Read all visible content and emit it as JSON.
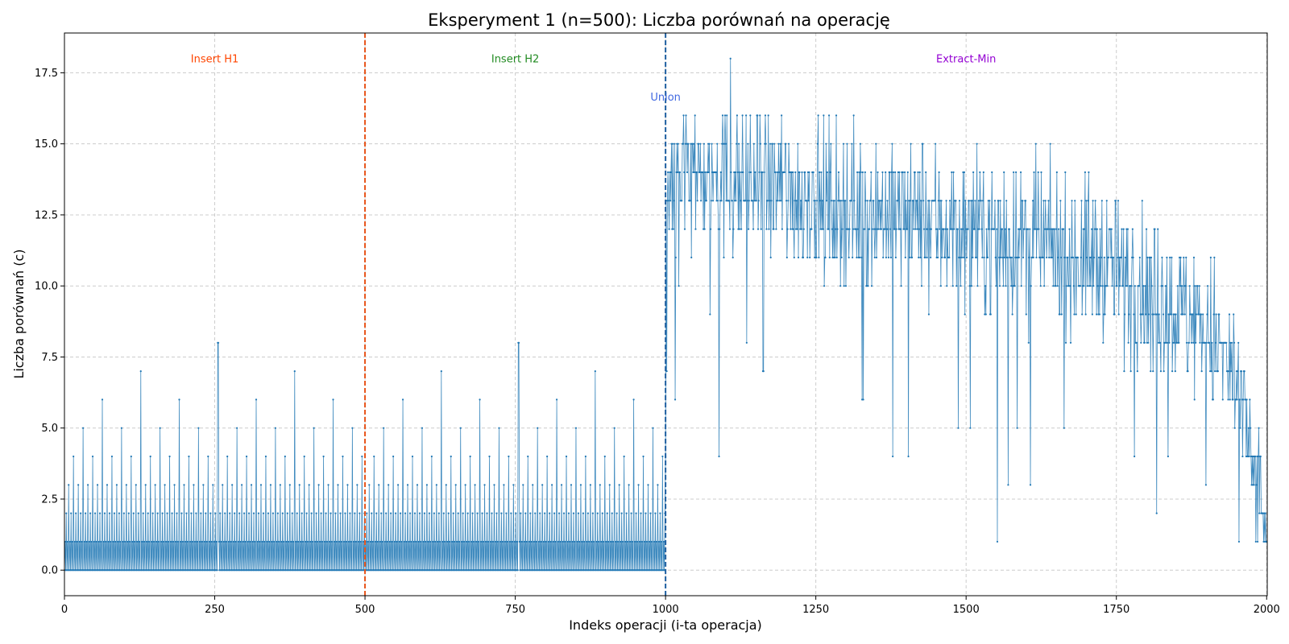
{
  "chart_data": {
    "type": "line",
    "title": "Eksperyment 1 (n=500): Liczba porównań na operację",
    "xlabel": "Indeks operacji (i-ta operacja)",
    "ylabel": "Liczba porównań (c)",
    "xlim": [
      0,
      2001
    ],
    "ylim": [
      -0.9,
      18.9
    ],
    "xticks": [
      0,
      250,
      500,
      750,
      1000,
      1250,
      1500,
      1750,
      2000
    ],
    "xtick_labels": [
      "0",
      "250",
      "500",
      "750",
      "1000",
      "1250",
      "1500",
      "1750",
      "2000"
    ],
    "yticks": [
      0,
      2.5,
      5,
      7.5,
      10,
      12.5,
      15,
      17.5
    ],
    "ytick_labels": [
      "0.0",
      "2.5",
      "5.0",
      "7.5",
      "10.0",
      "12.5",
      "15.0",
      "17.5"
    ],
    "grid": true,
    "series_color": "#1f77b4",
    "vertical_lines": [
      {
        "x": 500,
        "color": "#e8541a",
        "style": "dashed"
      },
      {
        "x": 1000,
        "color": "#1f5fa0",
        "style": "dashed"
      }
    ],
    "annotations": [
      {
        "text": "Insert H1",
        "x": 250,
        "y": 18.0,
        "color": "#ff4500"
      },
      {
        "text": "Insert H2",
        "x": 750,
        "y": 18.0,
        "color": "#228b22"
      },
      {
        "text": "Union",
        "x": 1000,
        "y": 16.65,
        "color": "#4169e1"
      },
      {
        "text": "Extract-Min",
        "x": 1500,
        "y": 18.0,
        "color": "#9400d3"
      }
    ],
    "series": [
      {
        "segments": [
          {
            "phase": "Insert H1",
            "x_start": 0,
            "x_end": 499,
            "pattern": "binary-counter carries (0,1,0,2,0,1,0,3,...)",
            "max": 8,
            "max_at": 256
          },
          {
            "phase": "Insert H2",
            "x_start": 500,
            "x_end": 999,
            "pattern": "binary-counter carries (0,1,0,2,0,1,0,3,...)",
            "max": 8,
            "max_at": 756
          },
          {
            "phase": "Union",
            "x_start": 1000,
            "x_end": 1000,
            "values": [
              4
            ]
          },
          {
            "phase": "Extract-Min",
            "x_start": 1001,
            "x_end": 2000,
            "trend": [
              [
                1001,
                14.0
              ],
              [
                1100,
                13.8
              ],
              [
                1250,
                13.0
              ],
              [
                1400,
                12.5
              ],
              [
                1500,
                12.0
              ],
              [
                1600,
                11.5
              ],
              [
                1700,
                11.0
              ],
              [
                1800,
                10.0
              ],
              [
                1900,
                8.5
              ],
              [
                1950,
                6.5
              ],
              [
                2000,
                1.0
              ]
            ],
            "max": 18,
            "max_at": 1108,
            "min": 1
          }
        ]
      }
    ]
  }
}
